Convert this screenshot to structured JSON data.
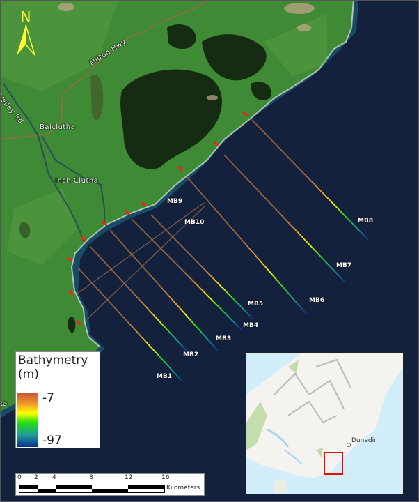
{
  "map": {
    "place_labels": {
      "milton_hwy": "Milton Hwy",
      "valley_rd": "o Valley Rd",
      "balclutha": "Balclutha",
      "inch_clutha": "Inch Clutha",
      "edge_label": "ka"
    },
    "north_arrow": {
      "letter": "N",
      "icon": "north-arrow-icon",
      "color": "#ffff33"
    },
    "transects": [
      {
        "name": "MB1"
      },
      {
        "name": "MB2"
      },
      {
        "name": "MB3"
      },
      {
        "name": "MB4"
      },
      {
        "name": "MB5"
      },
      {
        "name": "MB6"
      },
      {
        "name": "MB7"
      },
      {
        "name": "MB8"
      },
      {
        "name": "MB9"
      },
      {
        "name": "MB10"
      }
    ],
    "marker_color": "#ff1a1a"
  },
  "legend": {
    "title": "Bathymetry",
    "unit": "(m)",
    "max_label": "-7",
    "min_label": "-97",
    "ramp_colors": [
      "#c8553a",
      "#f29b2a",
      "#ffff00",
      "#22dd11",
      "#1e9c9a",
      "#0a2f8c"
    ]
  },
  "scalebar": {
    "ticks": [
      "0",
      "2",
      "4",
      "8",
      "12",
      "16"
    ],
    "unit": "Kilometers"
  },
  "inset": {
    "city_label": "Dunedin",
    "extent_box_color": "#ff0000"
  }
}
